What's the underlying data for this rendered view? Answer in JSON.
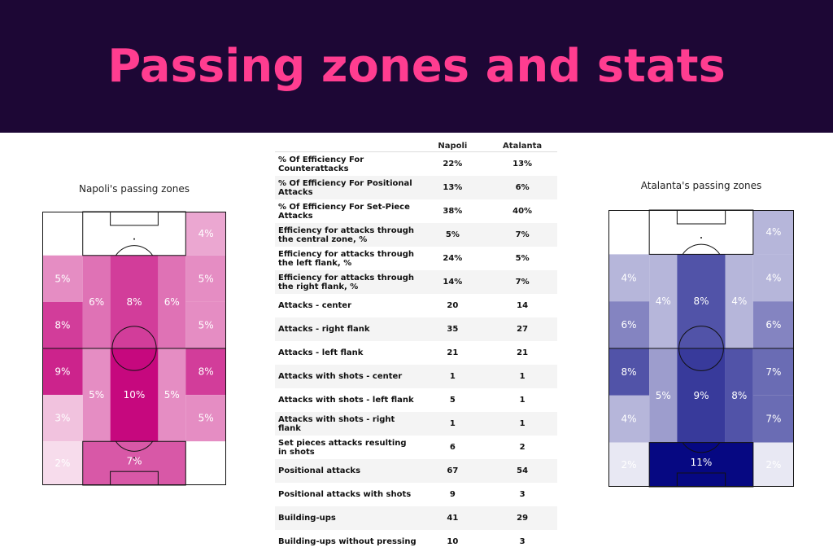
{
  "banner": {
    "title": "Passing zones and stats",
    "background": "#1d0735",
    "title_color": "#ff3d90"
  },
  "chart_data": [
    {
      "type": "heatmap",
      "title": "Napoli's passing zones",
      "colormap": "pink-magenta",
      "zones": [
        {
          "zone": "attacking-left-corner",
          "value": null,
          "label": ""
        },
        {
          "zone": "attacking-box",
          "value": null,
          "label": ""
        },
        {
          "zone": "attacking-right-corner",
          "value": 4,
          "label": "4%"
        },
        {
          "zone": "attacking-left-wide",
          "value": 5,
          "label": "5%"
        },
        {
          "zone": "attacking-left-halfspace",
          "value": 6,
          "label": "6%"
        },
        {
          "zone": "attacking-center",
          "value": 8,
          "label": "8%"
        },
        {
          "zone": "attacking-right-halfspace",
          "value": 6,
          "label": "6%"
        },
        {
          "zone": "attacking-right-wide",
          "value": 5,
          "label": "5%"
        },
        {
          "zone": "middle-left-wide",
          "value": 8,
          "label": "8%"
        },
        {
          "zone": "middle-right-wide",
          "value": 5,
          "label": "5%"
        },
        {
          "zone": "defensive-left-wide",
          "value": 9,
          "label": "9%"
        },
        {
          "zone": "defensive-left-halfspace",
          "value": 5,
          "label": "5%"
        },
        {
          "zone": "defensive-center",
          "value": 10,
          "label": "10%"
        },
        {
          "zone": "defensive-right-halfspace",
          "value": 5,
          "label": "5%"
        },
        {
          "zone": "defensive-right-wide",
          "value": 8,
          "label": "8%"
        },
        {
          "zone": "deep-left-wide",
          "value": 3,
          "label": "3%"
        },
        {
          "zone": "deep-right-wide",
          "value": 5,
          "label": "5%"
        },
        {
          "zone": "own-left-corner",
          "value": 2,
          "label": "2%"
        },
        {
          "zone": "own-box",
          "value": 7,
          "label": "7%"
        },
        {
          "zone": "own-right-corner",
          "value": null,
          "label": ""
        }
      ]
    },
    {
      "type": "table",
      "columns": [
        "",
        "Napoli",
        "Atalanta"
      ],
      "rows": [
        [
          "% Of Efficiency For Counterattacks",
          "22%",
          "13%"
        ],
        [
          "% Of Efficiency For Positional Attacks",
          "13%",
          "6%"
        ],
        [
          "% Of Efficiency For Set-Piece Attacks",
          "38%",
          "40%"
        ],
        [
          "Efficiency for attacks through the central zone, %",
          "5%",
          "7%"
        ],
        [
          "Efficiency for attacks through the left flank, %",
          "24%",
          "5%"
        ],
        [
          "Efficiency for attacks through the right flank, %",
          "14%",
          "7%"
        ],
        [
          "Attacks - center",
          "20",
          "14"
        ],
        [
          "Attacks - right flank",
          "35",
          "27"
        ],
        [
          "Attacks - left flank",
          "21",
          "21"
        ],
        [
          "Attacks with shots - center",
          "1",
          "1"
        ],
        [
          "Attacks with shots - left flank",
          "5",
          "1"
        ],
        [
          "Attacks with shots - right flank",
          "1",
          "1"
        ],
        [
          "Set pieces attacks resulting in shots",
          "6",
          "2"
        ],
        [
          "Positional attacks",
          "67",
          "54"
        ],
        [
          "Positional attacks with shots",
          "9",
          "3"
        ],
        [
          "Building-ups",
          "41",
          "29"
        ],
        [
          "Building-ups without pressing",
          "10",
          "3"
        ]
      ]
    },
    {
      "type": "heatmap",
      "title": "Atalanta's passing zones",
      "colormap": "blue-purple",
      "zones": [
        {
          "zone": "attacking-left-corner",
          "value": null,
          "label": ""
        },
        {
          "zone": "attacking-box",
          "value": null,
          "label": ""
        },
        {
          "zone": "attacking-right-corner",
          "value": 4,
          "label": "4%"
        },
        {
          "zone": "attacking-left-wide",
          "value": 4,
          "label": "4%"
        },
        {
          "zone": "attacking-left-halfspace",
          "value": 4,
          "label": "4%"
        },
        {
          "zone": "attacking-center",
          "value": 8,
          "label": "8%"
        },
        {
          "zone": "attacking-right-halfspace",
          "value": 4,
          "label": "4%"
        },
        {
          "zone": "attacking-right-wide",
          "value": 4,
          "label": "4%"
        },
        {
          "zone": "middle-left-wide",
          "value": 6,
          "label": "6%"
        },
        {
          "zone": "middle-right-wide",
          "value": 6,
          "label": "6%"
        },
        {
          "zone": "defensive-left-wide",
          "value": 8,
          "label": "8%"
        },
        {
          "zone": "defensive-left-halfspace",
          "value": 5,
          "label": "5%"
        },
        {
          "zone": "defensive-center",
          "value": 9,
          "label": "9%"
        },
        {
          "zone": "defensive-right-halfspace",
          "value": 8,
          "label": "8%"
        },
        {
          "zone": "defensive-right-wide",
          "value": 7,
          "label": "7%"
        },
        {
          "zone": "deep-left-wide",
          "value": 4,
          "label": "4%"
        },
        {
          "zone": "deep-right-wide",
          "value": 7,
          "label": "7%"
        },
        {
          "zone": "own-left-corner",
          "value": 2,
          "label": "2%"
        },
        {
          "zone": "own-box",
          "value": 11,
          "label": "11%"
        },
        {
          "zone": "own-right-corner",
          "value": 2,
          "label": "2%"
        }
      ]
    }
  ]
}
